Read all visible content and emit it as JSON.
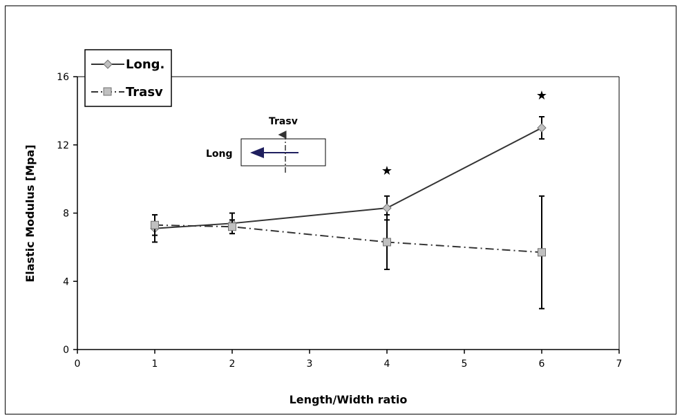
{
  "chart_data": {
    "type": "line",
    "xlabel": "Length/Width ratio",
    "ylabel": "Elastic Modulus [Mpa]",
    "xlim": [
      0,
      7
    ],
    "ylim": [
      0,
      16
    ],
    "x_ticks": [
      "0",
      "1",
      "2",
      "3",
      "4",
      "5",
      "6",
      "7"
    ],
    "y_ticks": [
      "0",
      "4",
      "8",
      "12",
      "16"
    ],
    "grid": false,
    "legend_position": "top-left",
    "series": [
      {
        "name": "Long.",
        "marker": "diamond",
        "line_style": "solid",
        "x": [
          1,
          2,
          4,
          6
        ],
        "y": [
          7.1,
          7.4,
          8.3,
          13.0
        ],
        "error": [
          0.8,
          0.6,
          0.7,
          0.65
        ]
      },
      {
        "name": "Trasv",
        "marker": "square",
        "line_style": "dash-dot",
        "x": [
          1,
          2,
          4,
          6
        ],
        "y": [
          7.3,
          7.2,
          6.3,
          5.7
        ],
        "error": [
          0.6,
          0.4,
          1.6,
          3.3
        ]
      }
    ],
    "significance_markers": [
      {
        "x": 4,
        "y": 10.5,
        "symbol": "★"
      },
      {
        "x": 6,
        "y": 14.9,
        "symbol": "★"
      }
    ],
    "inset": {
      "long_label": "Long",
      "trasv_label": "Trasv",
      "long_arrow_color": "#1f1f5e"
    },
    "colors": {
      "line": "#333333",
      "marker_fill": "#c0c0c0",
      "marker_stroke": "#707070",
      "error_bar": "#000000"
    }
  }
}
